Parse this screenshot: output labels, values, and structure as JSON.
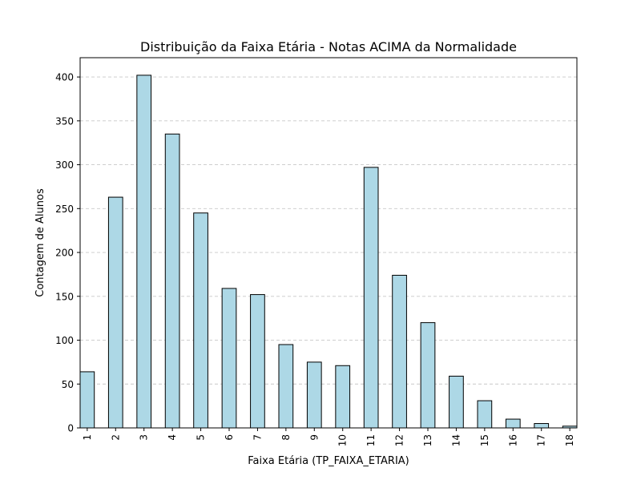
{
  "chart_data": {
    "type": "bar",
    "title": "Distribuição da Faixa Etária - Notas ACIMA da Normalidade",
    "xlabel": "Faixa Etária (TP_FAIXA_ETARIA)",
    "ylabel": "Contagem de Alunos",
    "categories": [
      "1",
      "2",
      "3",
      "4",
      "5",
      "6",
      "7",
      "8",
      "9",
      "10",
      "11",
      "12",
      "13",
      "14",
      "15",
      "16",
      "17",
      "18"
    ],
    "values": [
      64,
      263,
      402,
      335,
      245,
      159,
      152,
      95,
      75,
      71,
      297,
      174,
      120,
      59,
      31,
      10,
      5,
      2
    ],
    "ylim": [
      0,
      422
    ],
    "yticks": [
      "0",
      "50",
      "100",
      "150",
      "200",
      "250",
      "300",
      "350",
      "400"
    ],
    "grid": "y-dashed",
    "legend": "none",
    "colors": {
      "bar_fill": "#add8e6",
      "bar_edge": "#000000",
      "grid": "#c8c8c8",
      "axis": "#000000"
    }
  }
}
